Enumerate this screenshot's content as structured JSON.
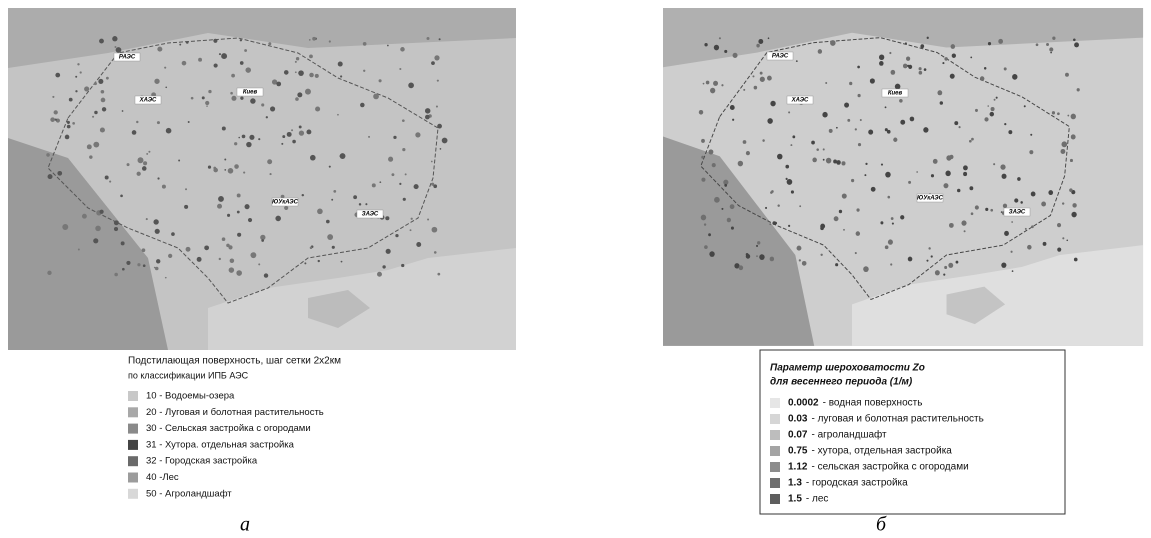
{
  "panel_a": {
    "map_labels": [
      "РАЭС",
      "ХАЭС",
      "Киев",
      "ЮУкАЭС",
      "ЗАЭС"
    ],
    "legend": {
      "title": "Подстилающая поверхность, шаг сетки 2x2км",
      "subtitle": "по классификации ИПБ АЭС",
      "items": [
        {
          "text": "10 - Водоемы-озера",
          "color": "#c8c8c8"
        },
        {
          "text": "20 - Луговая и болотная растительность",
          "color": "#a8a8a8"
        },
        {
          "text": "30 - Сельская застройка с огородами",
          "color": "#8a8a8a"
        },
        {
          "text": "31 - Хутора. отдельная застройка",
          "color": "#444444"
        },
        {
          "text": "32 - Городская застройка",
          "color": "#6a6a6a"
        },
        {
          "text": "40 -Лес",
          "color": "#9c9c9c"
        },
        {
          "text": "50 - Агроландшафт",
          "color": "#d8d8d8"
        }
      ]
    },
    "caption": "а"
  },
  "panel_b": {
    "map_labels": [
      "РАЭС",
      "ХАЭС",
      "Киев",
      "ЮУкАЭС",
      "ЗАЭС"
    ],
    "legend": {
      "title": "Параметр шероховатости Zo",
      "subtitle": "для весеннего периода (1/м)",
      "items": [
        {
          "value": "0.0002",
          "label": "- водная поверхность",
          "color": "#e6e6e6"
        },
        {
          "value": "0.03",
          "label": "- луговая и болотная растительность",
          "color": "#d6d6d6"
        },
        {
          "value": "0.07",
          "label": "- агроландшафт",
          "color": "#bdbdbd"
        },
        {
          "value": "0.75",
          "label": "- хутора, отдельная застройка",
          "color": "#a4a4a4"
        },
        {
          "value": "1.12",
          "label": "- сельская застройка с огородами",
          "color": "#8c8c8c"
        },
        {
          "value": "1.3",
          "label": "- городская застройка",
          "color": "#6e6e6e"
        },
        {
          "value": "1.5",
          "label": "- лес",
          "color": "#5e5e5e"
        }
      ]
    },
    "caption": "б"
  }
}
